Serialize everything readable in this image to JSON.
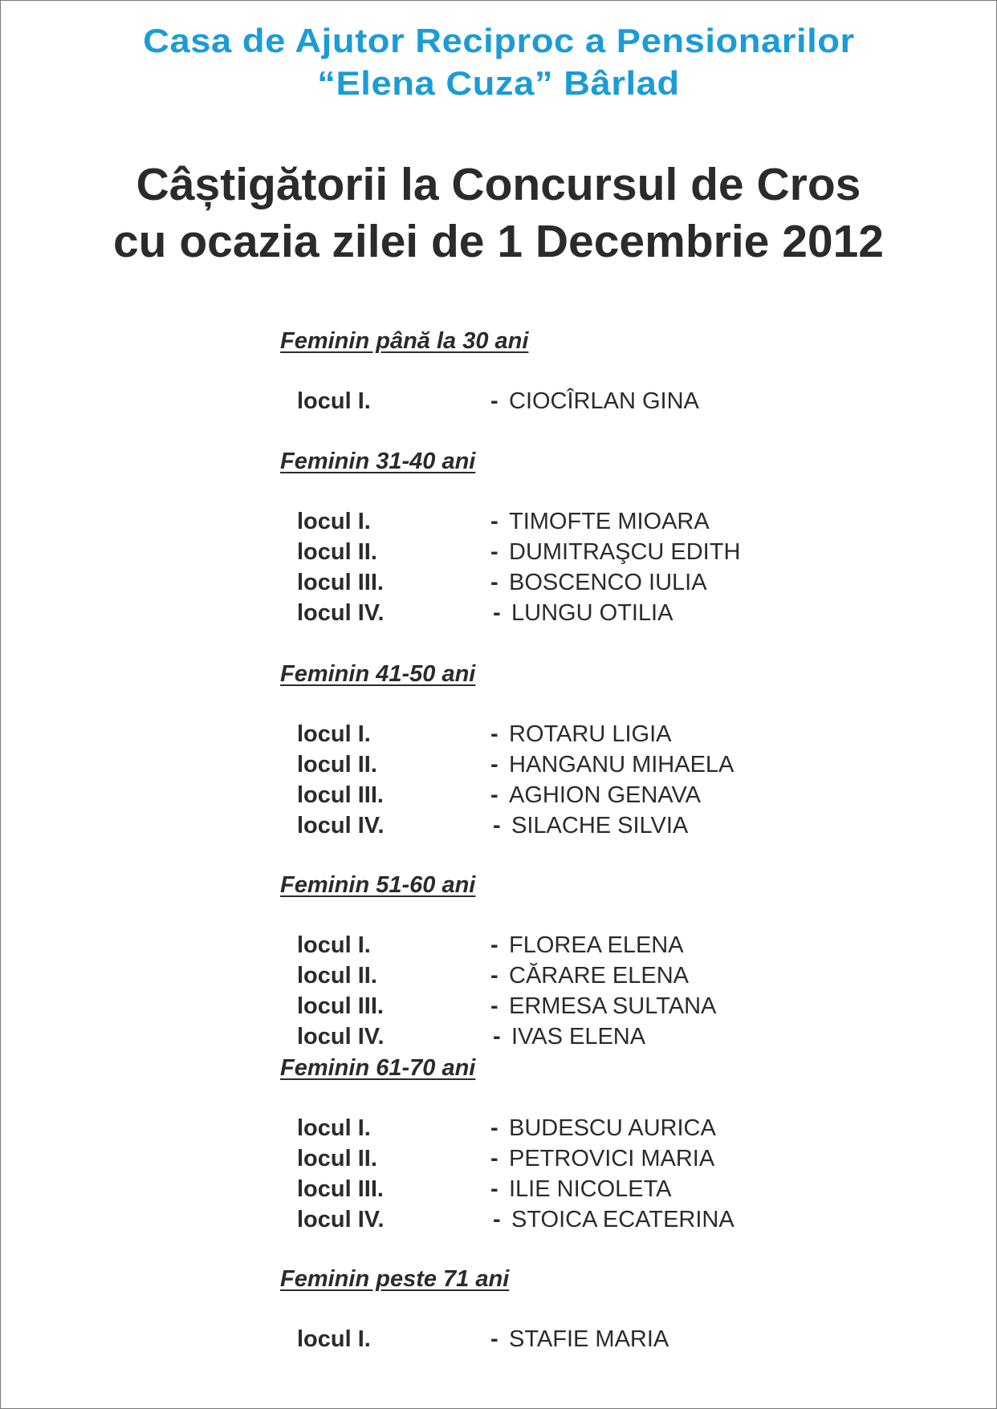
{
  "header": {
    "org_line1": "Casa de Ajutor Reciproc a Pensionarilor",
    "org_line2": "“Elena Cuza”  Bârlad",
    "org_color": "#1b9bd8",
    "title_line1": "Câștigătorii la Concursul de Cros",
    "title_line2": "cu ocazia zilei de 1 Decembrie 2012"
  },
  "sections": [
    {
      "heading": "Feminin până la 30 ani",
      "winners": [
        {
          "place": "locul I.",
          "dash": "-",
          "name": "CIOCÎRLAN GINA"
        }
      ]
    },
    {
      "heading": "Feminin 31-40 ani",
      "winners": [
        {
          "place": "locul I.",
          "dash": "-",
          "name": "TIMOFTE MIOARA"
        },
        {
          "place": "locul II.",
          "dash": "-",
          "name": "DUMITRAŞCU EDITH"
        },
        {
          "place": "locul III.",
          "dash": "-",
          "name": "BOSCENCO IULIA"
        },
        {
          "place": "locul IV.",
          "dash": "-",
          "name": "LUNGU OTILIA"
        }
      ]
    },
    {
      "heading": "Feminin 41-50 ani",
      "winners": [
        {
          "place": "locul I.",
          "dash": "-",
          "name": "ROTARU LIGIA"
        },
        {
          "place": "locul II.",
          "dash": "-",
          "name": "HANGANU MIHAELA"
        },
        {
          "place": "locul III.",
          "dash": "-",
          "name": "AGHION GENAVA"
        },
        {
          "place": "locul IV.",
          "dash": "-",
          "name": "SILACHE SILVIA"
        }
      ]
    },
    {
      "heading": "Feminin 51-60 ani",
      "winners": [
        {
          "place": "locul I.",
          "dash": "-",
          "name": "FLOREA ELENA"
        },
        {
          "place": "locul II.",
          "dash": "-",
          "name": "CĂRARE ELENA"
        },
        {
          "place": "locul III.",
          "dash": "-",
          "name": "ERMESA SULTANA"
        },
        {
          "place": "locul IV.",
          "dash": "-",
          "name": "IVAS ELENA"
        }
      ]
    },
    {
      "heading": "Feminin 61-70 ani",
      "winners": [
        {
          "place": "locul I.",
          "dash": "-",
          "name": "BUDESCU AURICA"
        },
        {
          "place": "locul II.",
          "dash": "-",
          "name": "PETROVICI MARIA"
        },
        {
          "place": "locul III.",
          "dash": "-",
          "name": "ILIE NICOLETA"
        },
        {
          "place": "locul IV.",
          "dash": "-",
          "name": "STOICA ECATERINA"
        }
      ]
    },
    {
      "heading": "Feminin peste 71 ani",
      "winners": [
        {
          "place": "locul I.",
          "dash": "-",
          "name": "STAFIE MARIA"
        }
      ]
    }
  ]
}
